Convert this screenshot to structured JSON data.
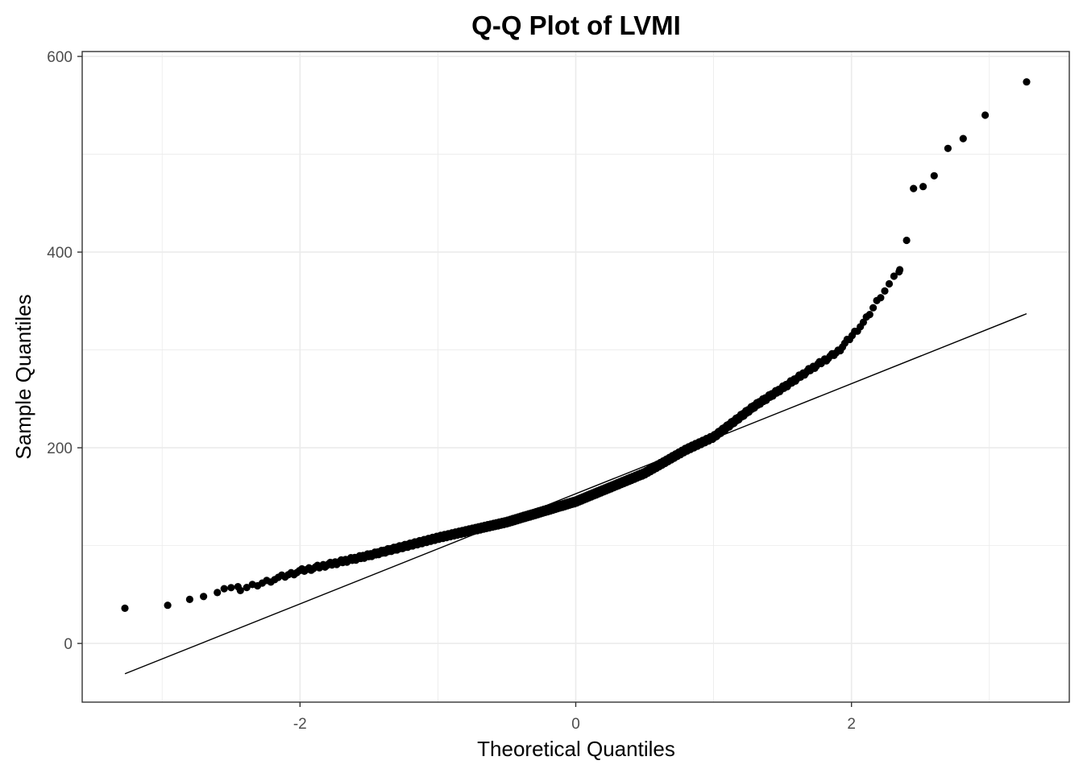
{
  "chart_data": {
    "type": "scatter",
    "title": "Q-Q Plot of LVMI",
    "xlabel": "Theoretical Quantiles",
    "ylabel": "Sample Quantiles",
    "xlim": [
      -3.58,
      3.58
    ],
    "ylim": [
      -60,
      605
    ],
    "x_ticks": [
      -2,
      0,
      2
    ],
    "x_tick_labels": [
      "-2",
      "0",
      "2"
    ],
    "y_ticks": [
      0,
      200,
      400,
      600
    ],
    "y_tick_labels": [
      "0",
      "200",
      "400",
      "600"
    ],
    "grid": true,
    "legend": "none",
    "colors": {
      "points": "#000000",
      "line": "#000000",
      "grid": "#ebebeb",
      "panel_border": "#333333"
    },
    "reference_line": {
      "x": [
        -3.27,
        3.27
      ],
      "y": [
        -31,
        337
      ]
    },
    "curve_anchors": {
      "x": [
        -3.27,
        -2.96,
        -2.75,
        -2.6,
        -2.4,
        -2.0,
        -1.5,
        -1.0,
        -0.5,
        0.0,
        0.5,
        0.8,
        1.0,
        1.3,
        1.5,
        1.7,
        1.9,
        2.0,
        2.1,
        2.2,
        2.3,
        2.35,
        2.4,
        2.45,
        2.52,
        2.6,
        2.7,
        2.81,
        2.97,
        3.27
      ],
      "y": [
        36,
        39,
        45,
        48,
        56,
        74,
        90,
        108,
        124,
        145,
        174,
        198,
        211,
        243,
        261,
        280,
        298,
        314,
        330,
        353,
        372,
        382,
        412,
        465,
        467,
        478,
        506,
        516,
        540,
        574
      ]
    },
    "n_points": 1000,
    "outer_points": {
      "x": [
        -3.27,
        -2.96,
        -2.8,
        -2.7,
        -2.6,
        -2.55,
        -2.5,
        -2.45,
        2.35,
        2.4,
        2.45,
        2.52,
        2.6,
        2.7,
        2.81,
        2.97,
        3.27
      ],
      "y": [
        36,
        39,
        45,
        48,
        52,
        56,
        57,
        58,
        382,
        412,
        465,
        467,
        478,
        506,
        516,
        540,
        574
      ]
    }
  }
}
